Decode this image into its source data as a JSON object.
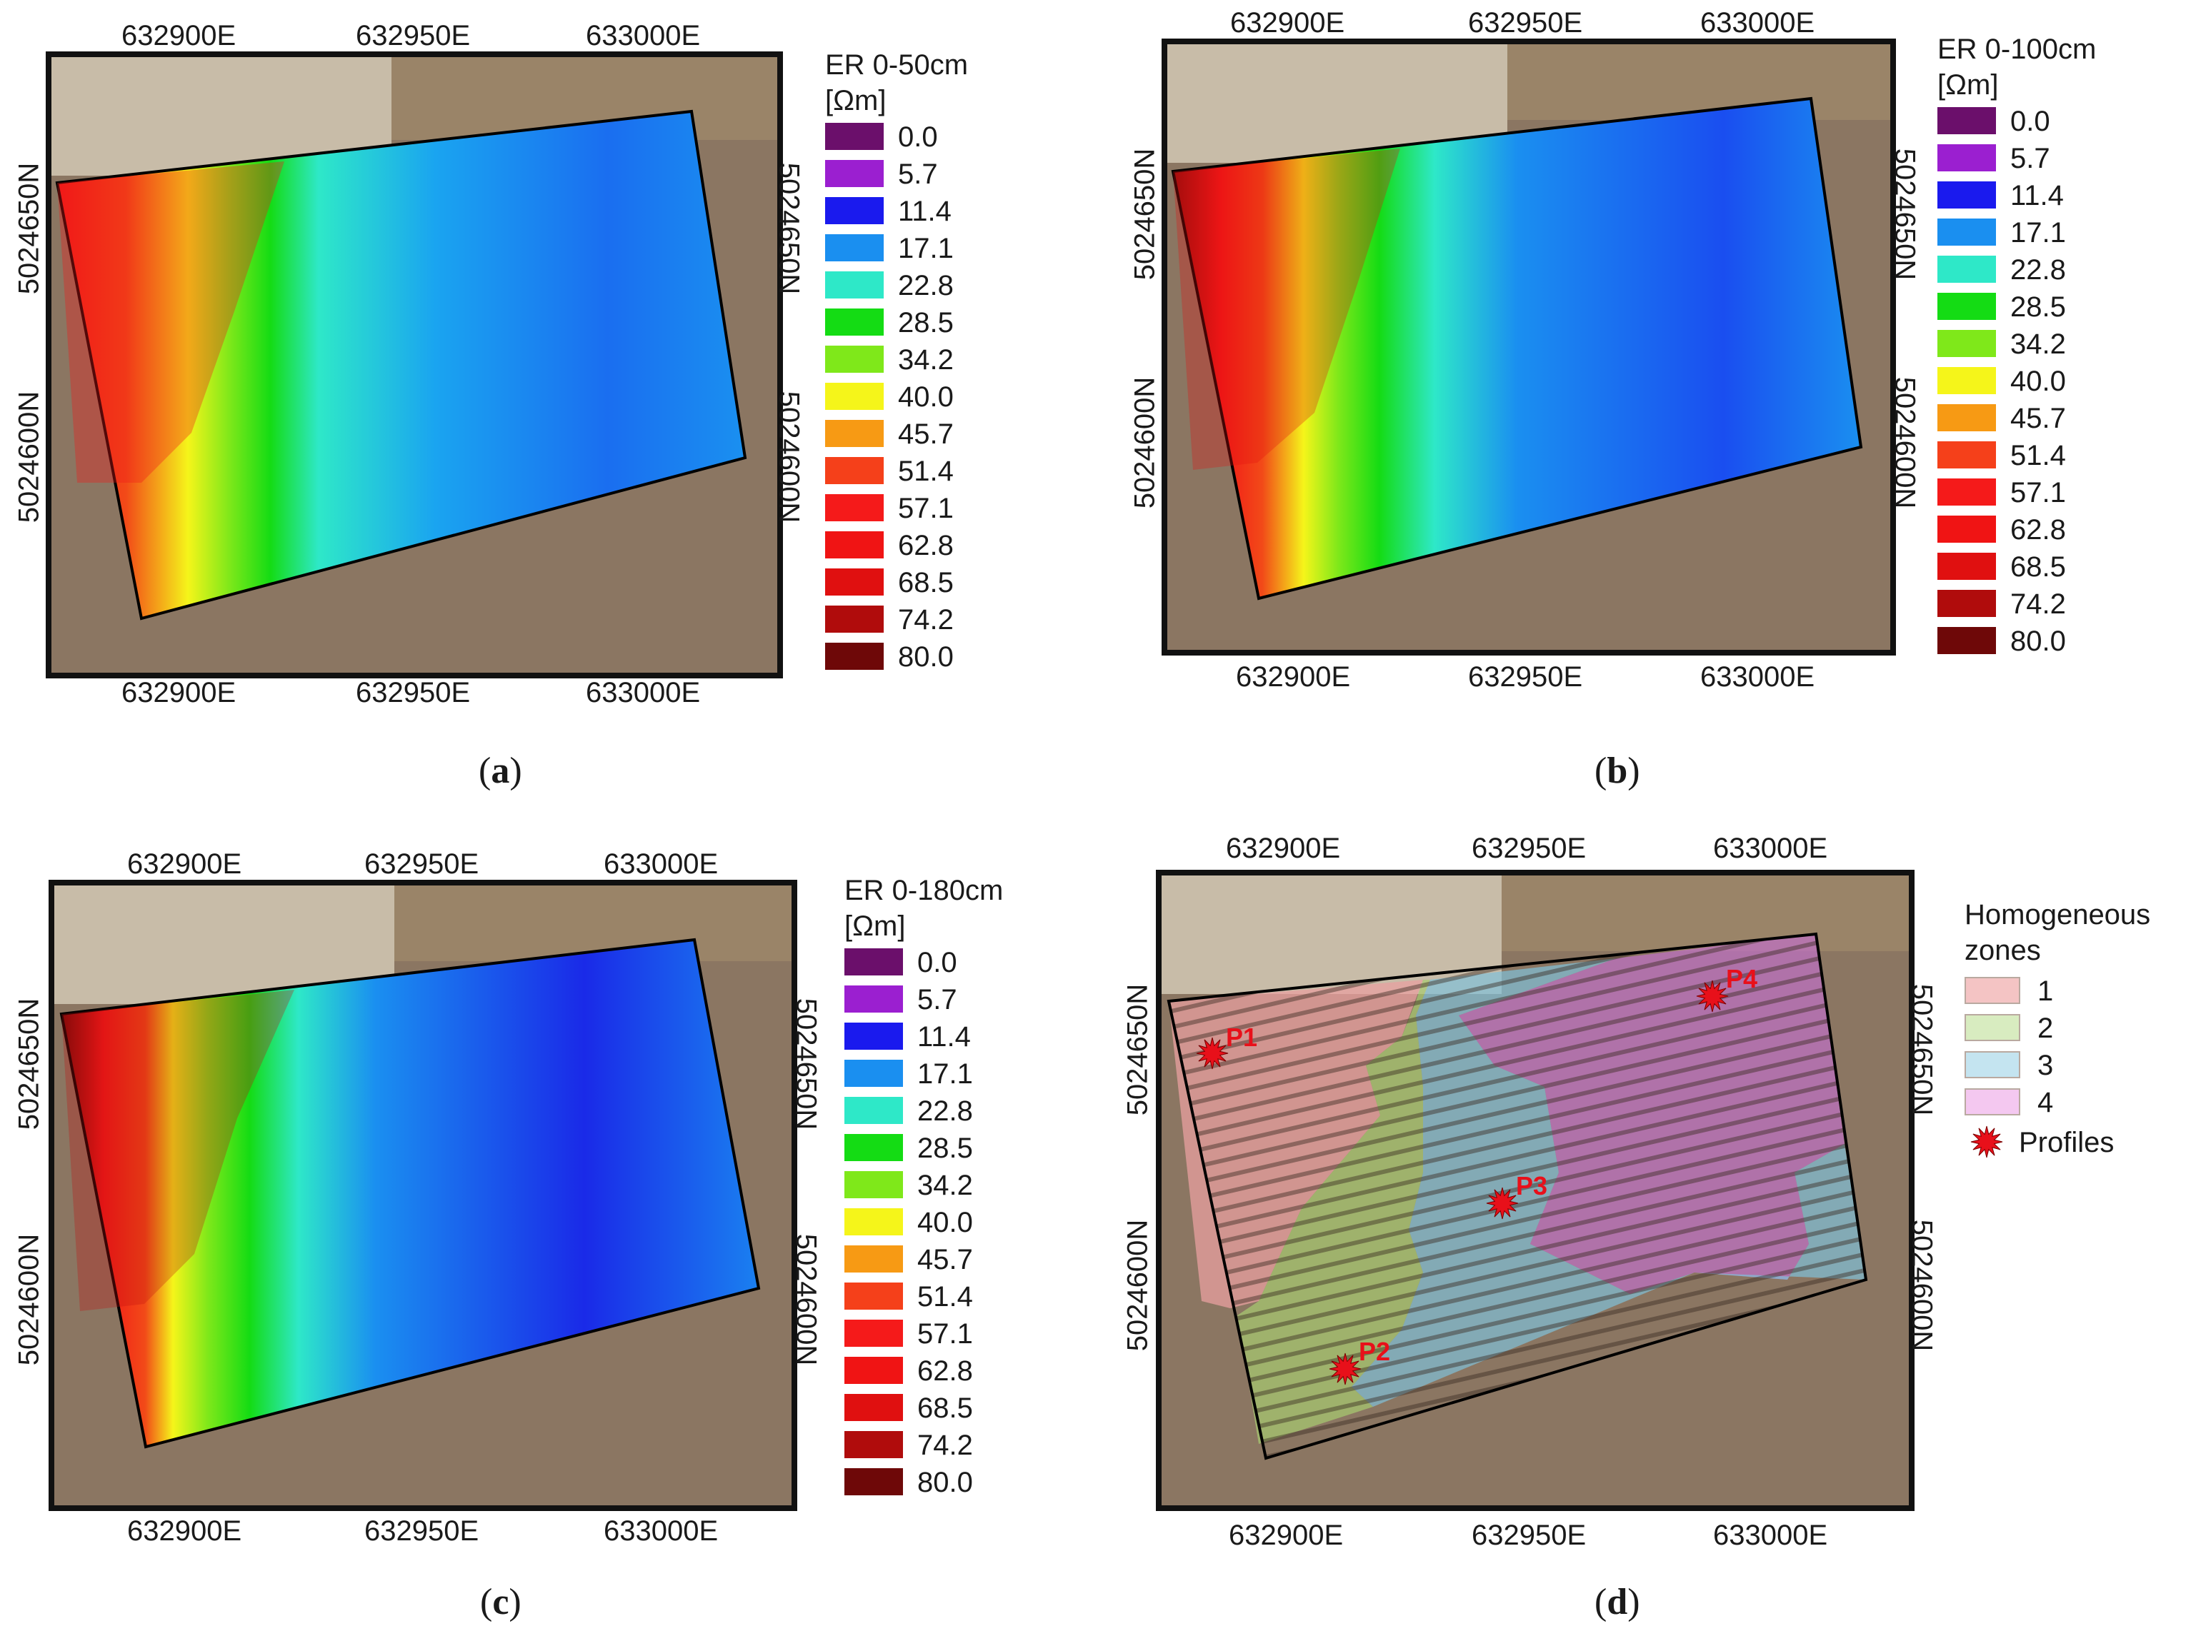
{
  "panels": [
    {
      "id": "a",
      "caption": "a",
      "legend_title": "ER 0-50cm",
      "legend_unit": "[Ωm]",
      "x_ticks": [
        "632900E",
        "632950E",
        "633000E"
      ],
      "y_ticks": [
        "5024650N",
        "5024600N"
      ]
    },
    {
      "id": "b",
      "caption": "b",
      "legend_title": "ER 0-100cm",
      "legend_unit": "[Ωm]",
      "x_ticks": [
        "632900E",
        "632950E",
        "633000E"
      ],
      "y_ticks": [
        "5024650N",
        "5024600N"
      ]
    },
    {
      "id": "c",
      "caption": "c",
      "legend_title": "ER 0-180cm",
      "legend_unit": "[Ωm]",
      "x_ticks": [
        "632900E",
        "632950E",
        "633000E"
      ],
      "y_ticks": [
        "5024650N",
        "5024600N"
      ]
    },
    {
      "id": "d",
      "caption": "d",
      "legend_title": "Homogeneous",
      "legend_unit": "zones",
      "x_ticks": [
        "632900E",
        "632950E",
        "633000E"
      ],
      "y_ticks": [
        "5024650N",
        "5024600N"
      ]
    }
  ],
  "resistivity_scale": {
    "values": [
      "0.0",
      "5.7",
      "11.4",
      "17.1",
      "22.8",
      "28.5",
      "34.2",
      "40.0",
      "45.7",
      "51.4",
      "57.1",
      "62.8",
      "68.5",
      "74.2",
      "80.0"
    ],
    "colors": [
      "#6b0f6b",
      "#9b1fd0",
      "#1a1aee",
      "#1a8ff0",
      "#2ee8c8",
      "#14dc14",
      "#7fe81a",
      "#f5f51a",
      "#f79a14",
      "#f5401a",
      "#f51a1a",
      "#f01414",
      "#e01010",
      "#b00c0c",
      "#6e0808"
    ]
  },
  "zones": {
    "items": [
      {
        "label": "1",
        "color": "#f4c4c4"
      },
      {
        "label": "2",
        "color": "#d8ecc0"
      },
      {
        "label": "3",
        "color": "#c4e4f0"
      },
      {
        "label": "4",
        "color": "#f4c8f0"
      }
    ],
    "profiles_label": "Profiles",
    "profile_points": [
      "P1",
      "P2",
      "P3",
      "P4"
    ]
  },
  "colors": {
    "field_soil": "#8b7662",
    "profile_marker": "#e8101a"
  }
}
